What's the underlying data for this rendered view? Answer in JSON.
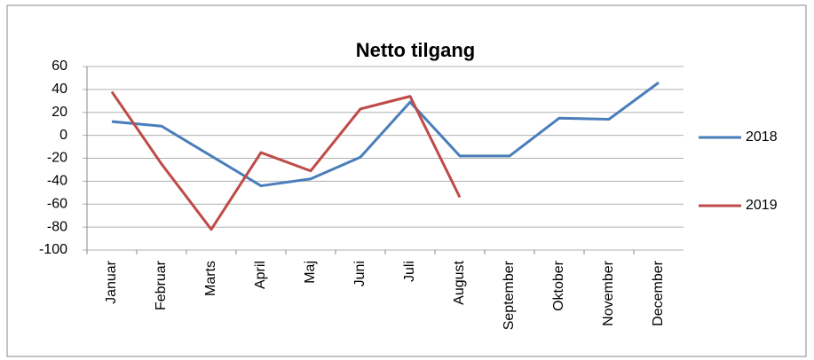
{
  "chart_data": {
    "type": "line",
    "title": "Netto tilgang",
    "categories": [
      "Januar",
      "Februar",
      "Marts",
      "April",
      "Maj",
      "Juni",
      "Juli",
      "August",
      "September",
      "Oktober",
      "November",
      "December"
    ],
    "series": [
      {
        "name": "2018",
        "color": "#4a7ebb",
        "values": [
          12,
          8,
          -18,
          -44,
          -38,
          -19,
          29,
          -18,
          -18,
          15,
          14,
          46
        ]
      },
      {
        "name": "2019",
        "color": "#be4b48",
        "values": [
          38,
          -25,
          -82,
          -15,
          -31,
          23,
          34,
          -54,
          null,
          null,
          null,
          null
        ]
      }
    ],
    "ylim": [
      -100,
      60
    ],
    "yticks": [
      -100,
      -80,
      -60,
      -40,
      -20,
      0,
      20,
      40,
      60
    ],
    "grid": true,
    "legend": "right"
  }
}
